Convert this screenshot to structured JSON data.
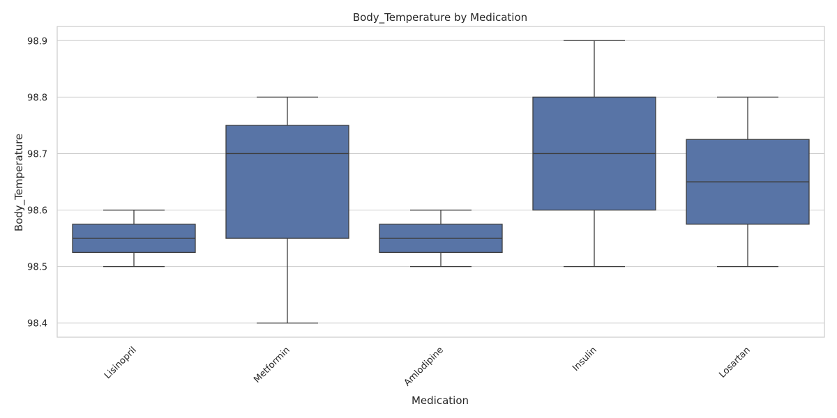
{
  "chart_data": {
    "type": "box",
    "title": "Body_Temperature by Medication",
    "xlabel": "Medication",
    "ylabel": "Body_Temperature",
    "ylim": [
      98.375,
      98.925
    ],
    "yticks": [
      "98.4",
      "98.5",
      "98.6",
      "98.7",
      "98.8",
      "98.9"
    ],
    "categories": [
      "Lisinopril",
      "Metformin",
      "Amlodipine",
      "Insulin",
      "Losartan"
    ],
    "boxes": [
      {
        "category": "Lisinopril",
        "min": 98.5,
        "q1": 98.525,
        "median": 98.55,
        "q3": 98.575,
        "max": 98.6
      },
      {
        "category": "Metformin",
        "min": 98.4,
        "q1": 98.55,
        "median": 98.7,
        "q3": 98.75,
        "max": 98.8
      },
      {
        "category": "Amlodipine",
        "min": 98.5,
        "q1": 98.525,
        "median": 98.55,
        "q3": 98.575,
        "max": 98.6
      },
      {
        "category": "Insulin",
        "min": 98.5,
        "q1": 98.6,
        "median": 98.7,
        "q3": 98.8,
        "max": 98.9
      },
      {
        "category": "Losartan",
        "min": 98.5,
        "q1": 98.575,
        "median": 98.65,
        "q3": 98.725,
        "max": 98.8
      }
    ],
    "grid": true,
    "legend": "none",
    "colors": {
      "box_fill": "#5874a6",
      "line": "#3d3d3d",
      "grid": "#cccccc",
      "text": "#262626"
    }
  }
}
